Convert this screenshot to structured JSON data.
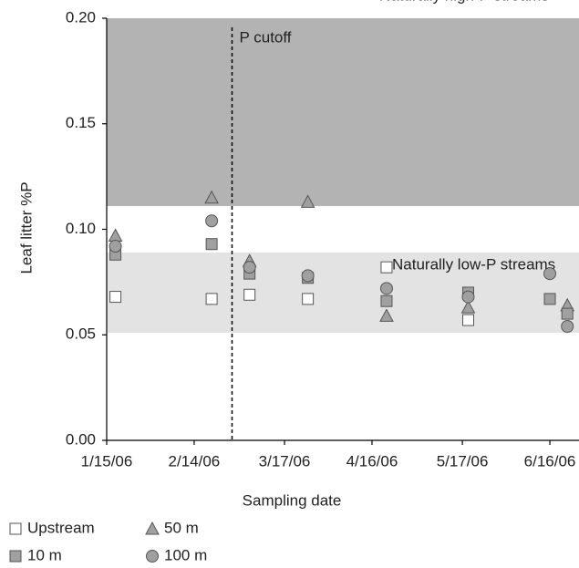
{
  "chart_data": {
    "type": "scatter",
    "x_label": "Sampling date",
    "y_label": "Leaf litter %P",
    "xlim": [
      "2006-01-15",
      "2006-06-26"
    ],
    "xticks": [
      {
        "value": "2006-01-15",
        "label": "1/15/06"
      },
      {
        "value": "2006-02-14",
        "label": "2/14/06"
      },
      {
        "value": "2006-03-17",
        "label": "3/17/06"
      },
      {
        "value": "2006-04-16",
        "label": "4/16/06"
      },
      {
        "value": "2006-05-17",
        "label": "5/17/06"
      },
      {
        "value": "2006-06-16",
        "label": "6/16/06"
      }
    ],
    "ylim": [
      0,
      0.2
    ],
    "yticks": [
      {
        "value": 0,
        "label": "0.00"
      },
      {
        "value": 0.05,
        "label": "0.05"
      },
      {
        "value": 0.1,
        "label": "0.10"
      },
      {
        "value": 0.15,
        "label": "0.15"
      },
      {
        "value": 0.2,
        "label": "0.20"
      }
    ],
    "bands": [
      {
        "label": "Naturally high-P streams",
        "range": [
          0.111,
          0.2
        ],
        "color": "#b3b3b3"
      },
      {
        "label": "Naturally low-P streams",
        "range": [
          0.051,
          0.089
        ],
        "color": "#e3e3e3"
      }
    ],
    "cutoff": {
      "label": "P cutoff",
      "x": "2006-02-27"
    },
    "series": [
      {
        "name": "Upstream",
        "marker": "square",
        "color": "#ffffff",
        "x": [
          "2006-01-18",
          "2006-02-20",
          "2006-03-05",
          "2006-03-25",
          "2006-04-21",
          "2006-05-19"
        ],
        "values": [
          0.068,
          0.067,
          0.069,
          0.067,
          0.082,
          0.057
        ]
      },
      {
        "name": "50 m",
        "marker": "triangle",
        "color": "#a0a0a0",
        "x": [
          "2006-01-18",
          "2006-02-20",
          "2006-03-05",
          "2006-03-25",
          "2006-04-21",
          "2006-05-19",
          "2006-06-22"
        ],
        "values": [
          0.097,
          0.115,
          0.085,
          0.113,
          0.059,
          0.063,
          0.064
        ]
      },
      {
        "name": "10 m",
        "marker": "square",
        "color": "#a0a0a0",
        "x": [
          "2006-01-18",
          "2006-02-20",
          "2006-03-05",
          "2006-03-25",
          "2006-04-21",
          "2006-05-19",
          "2006-06-16",
          "2006-06-22"
        ],
        "values": [
          0.088,
          0.093,
          0.079,
          0.077,
          0.066,
          0.07,
          0.067,
          0.06
        ]
      },
      {
        "name": "100 m",
        "marker": "circle",
        "color": "#a0a0a0",
        "x": [
          "2006-01-18",
          "2006-02-20",
          "2006-03-05",
          "2006-03-25",
          "2006-04-21",
          "2006-05-19",
          "2006-06-16",
          "2006-06-22"
        ],
        "values": [
          0.092,
          0.104,
          0.082,
          0.078,
          0.072,
          0.068,
          0.079,
          0.054
        ]
      }
    ]
  }
}
